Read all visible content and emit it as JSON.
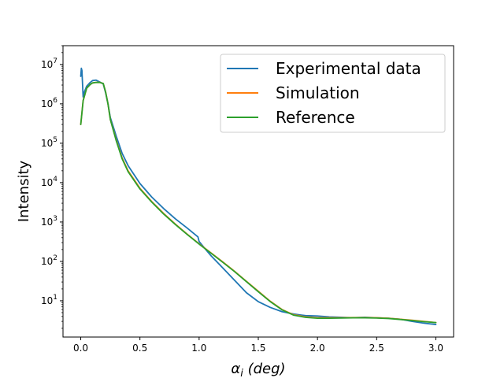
{
  "chart_data": {
    "type": "line",
    "xlabel": "αi (deg)",
    "xlabel_parts": {
      "base": "α",
      "subscript": "i",
      "rest": " (deg)"
    },
    "ylabel": "Intensity",
    "xlim": [
      -0.15,
      3.15
    ],
    "ylim": [
      1.2,
      30000000
    ],
    "yscale": "log",
    "grid": false,
    "legend_position": "top-right",
    "x_ticks": [
      {
        "value": 0.0,
        "label": "0.0"
      },
      {
        "value": 0.5,
        "label": "0.5"
      },
      {
        "value": 1.0,
        "label": "1.0"
      },
      {
        "value": 1.5,
        "label": "1.5"
      },
      {
        "value": 2.0,
        "label": "2.0"
      },
      {
        "value": 2.5,
        "label": "2.5"
      },
      {
        "value": 3.0,
        "label": "3.0"
      }
    ],
    "y_ticks": [
      {
        "value": 10,
        "base": "10",
        "exp": "1"
      },
      {
        "value": 100,
        "base": "10",
        "exp": "2"
      },
      {
        "value": 1000,
        "base": "10",
        "exp": "3"
      },
      {
        "value": 10000,
        "base": "10",
        "exp": "4"
      },
      {
        "value": 100000,
        "base": "10",
        "exp": "5"
      },
      {
        "value": 1000000,
        "base": "10",
        "exp": "6"
      },
      {
        "value": 10000000,
        "base": "10",
        "exp": "7"
      }
    ],
    "series": [
      {
        "name": "Experimental data",
        "color": "#1f77b4",
        "x": [
          0.0,
          0.005,
          0.01,
          0.02,
          0.03,
          0.05,
          0.08,
          0.1,
          0.13,
          0.16,
          0.19,
          0.21,
          0.23,
          0.25,
          0.3,
          0.35,
          0.4,
          0.5,
          0.6,
          0.7,
          0.8,
          0.9,
          0.99,
          1.0,
          1.05,
          1.1,
          1.2,
          1.3,
          1.4,
          1.5,
          1.6,
          1.7,
          1.8,
          1.9,
          2.0,
          2.1,
          2.2,
          2.3,
          2.4,
          2.5,
          2.6,
          2.7,
          2.8,
          2.9,
          3.0
        ],
        "y": [
          5000000,
          8000000,
          7000000,
          1500000,
          2000000,
          2800000,
          3500000,
          3900000,
          4000000,
          3600000,
          3200000,
          1900000,
          1000000,
          450000,
          150000,
          55000,
          27000,
          9500,
          4300,
          2200,
          1200,
          700,
          420,
          320,
          210,
          140,
          68,
          33,
          16,
          9.5,
          6.8,
          5.3,
          4.6,
          4.2,
          4.1,
          3.9,
          3.8,
          3.7,
          3.8,
          3.7,
          3.6,
          3.4,
          3.0,
          2.7,
          2.5
        ]
      },
      {
        "name": "Simulation",
        "color": "#ff7f0e",
        "x": [
          0.0,
          0.02,
          0.05,
          0.08,
          0.1,
          0.13,
          0.16,
          0.19,
          0.21,
          0.23,
          0.25,
          0.3,
          0.35,
          0.4,
          0.5,
          0.6,
          0.7,
          0.8,
          0.9,
          1.0,
          1.1,
          1.2,
          1.3,
          1.4,
          1.5,
          1.6,
          1.7,
          1.8,
          1.9,
          2.0,
          2.1,
          2.2,
          2.3,
          2.4,
          2.5,
          2.6,
          2.7,
          2.8,
          2.9,
          3.0
        ],
        "y": [
          300000,
          1200000,
          2500000,
          3100000,
          3400000,
          3500000,
          3500000,
          3300000,
          2000000,
          1000000,
          400000,
          120000,
          42000,
          20000,
          7200,
          3300,
          1650,
          880,
          490,
          280,
          165,
          97,
          56,
          31,
          17.5,
          9.8,
          6.0,
          4.4,
          3.9,
          3.7,
          3.7,
          3.7,
          3.75,
          3.75,
          3.7,
          3.6,
          3.4,
          3.2,
          3.0,
          2.8
        ]
      },
      {
        "name": "Reference",
        "color": "#2ca02c",
        "x": [
          0.0,
          0.02,
          0.05,
          0.08,
          0.1,
          0.13,
          0.16,
          0.19,
          0.21,
          0.23,
          0.25,
          0.3,
          0.35,
          0.4,
          0.5,
          0.6,
          0.7,
          0.8,
          0.9,
          1.0,
          1.1,
          1.2,
          1.3,
          1.4,
          1.5,
          1.6,
          1.7,
          1.8,
          1.9,
          2.0,
          2.1,
          2.2,
          2.3,
          2.4,
          2.5,
          2.6,
          2.7,
          2.8,
          2.9,
          3.0
        ],
        "y": [
          300000,
          1200000,
          2500000,
          3100000,
          3400000,
          3500000,
          3500000,
          3300000,
          2000000,
          1000000,
          400000,
          115000,
          40000,
          19000,
          6900,
          3200,
          1600,
          860,
          480,
          275,
          162,
          95,
          55,
          30.5,
          17,
          9.6,
          5.9,
          4.3,
          3.8,
          3.6,
          3.6,
          3.65,
          3.7,
          3.7,
          3.65,
          3.55,
          3.35,
          3.15,
          2.95,
          2.8
        ]
      }
    ]
  }
}
